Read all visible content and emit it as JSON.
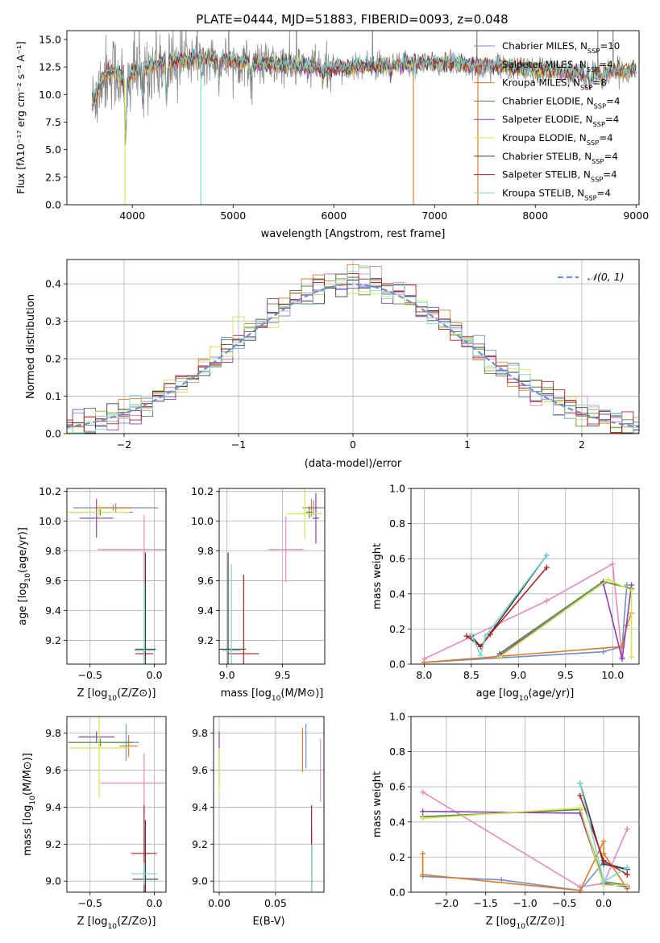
{
  "figure_title": "PLATE=0444, MJD=51883, FIBERID=0093, z=0.048",
  "series_colors": [
    "#6f8fcf",
    "#e78ac3",
    "#e07b23",
    "#4d8a3c",
    "#8e3fb4",
    "#d6e64a",
    "#3a3a3a",
    "#b51f1f",
    "#78d8d8"
  ],
  "chart_data": [
    {
      "id": "spectrum",
      "type": "line",
      "title": "PLATE=0444, MJD=51883, FIBERID=0093, z=0.048",
      "xlabel": "wavelength [Angstrom, rest frame]",
      "ylabel": "Flux [fλ10⁻¹⁷ erg cm⁻² s⁻¹ A⁻¹]",
      "xlim": [
        3350,
        9030
      ],
      "ylim": [
        0,
        15.8
      ],
      "xticks": [
        4000,
        5000,
        6000,
        7000,
        8000,
        9000
      ],
      "yticks": [
        0.0,
        2.5,
        5.0,
        7.5,
        10.0,
        12.5,
        15.0
      ],
      "ytick_labels": [
        "0.0",
        "2.5",
        "5.0",
        "7.5",
        "10.0",
        "12.5",
        "15.0"
      ],
      "legend": "top-right",
      "legend_entries": [
        {
          "label": "Chabrier MILES, N",
          "sub": "SSP",
          "suffix": "=10"
        },
        {
          "label": "Salpeter MILES, N",
          "sub": "SSP",
          "suffix": "=4"
        },
        {
          "label": "Kroupa MILES, N",
          "sub": "SSP",
          "suffix": "=8"
        },
        {
          "label": "Chabrier ELODIE, N",
          "sub": "SSP",
          "suffix": "=4"
        },
        {
          "label": "Salpeter ELODIE, N",
          "sub": "SSP",
          "suffix": "=4"
        },
        {
          "label": "Kroupa ELODIE, N",
          "sub": "SSP",
          "suffix": "=4"
        },
        {
          "label": "Chabrier STELIB, N",
          "sub": "SSP",
          "suffix": "=4"
        },
        {
          "label": "Salpeter STELIB, N",
          "sub": "SSP",
          "suffix": "=4"
        },
        {
          "label": "Kroupa STELIB, N",
          "sub": "SSP",
          "suffix": "=4"
        }
      ],
      "continuum": [
        [
          3600,
          9.0
        ],
        [
          3700,
          11.5
        ],
        [
          3800,
          12.3
        ],
        [
          3950,
          11.0
        ],
        [
          4000,
          12.0
        ],
        [
          4200,
          12.6
        ],
        [
          4500,
          13.2
        ],
        [
          4800,
          13.3
        ],
        [
          5000,
          13.0
        ],
        [
          5500,
          12.6
        ],
        [
          6000,
          12.4
        ],
        [
          6500,
          12.6
        ],
        [
          7000,
          12.9
        ],
        [
          7500,
          12.6
        ],
        [
          8000,
          12.3
        ],
        [
          8500,
          11.9
        ],
        [
          9000,
          12.2
        ]
      ],
      "absorption_features": [
        [
          3933,
          6.0
        ],
        [
          4101,
          3.0
        ],
        [
          4340,
          4.0
        ],
        [
          4861,
          2.0
        ],
        [
          5175,
          1.5
        ],
        [
          5893,
          1.2
        ],
        [
          6563,
          0.9
        ],
        [
          8498,
          1.0
        ],
        [
          8542,
          1.3
        ],
        [
          8662,
          1.0
        ]
      ],
      "drop_to_zero": [
        [
          3925,
          "#d6e64a"
        ],
        [
          4680,
          "#78d8d8"
        ],
        [
          6790,
          "#e07b23"
        ],
        [
          7430,
          "#e07b23"
        ]
      ]
    },
    {
      "id": "residuals",
      "type": "line",
      "xlabel": "(data-model)/error",
      "ylabel": "Normed distribution",
      "xlim": [
        -2.5,
        2.5
      ],
      "ylim": [
        0,
        0.465
      ],
      "xticks": [
        -2,
        -1,
        0,
        1,
        2
      ],
      "xtick_labels": [
        "−2",
        "−1",
        "0",
        "1",
        "2"
      ],
      "yticks": [
        0.0,
        0.1,
        0.2,
        0.3,
        0.4
      ],
      "ytick_labels": [
        "0.0",
        "0.1",
        "0.2",
        "0.3",
        "0.4"
      ],
      "grid": true,
      "legend": "top-right",
      "reference_curve": {
        "name": "𝒩(0, 1)",
        "mean": 0,
        "sigma": 1,
        "color": "#6f8fcf",
        "dashed": true
      },
      "bin_width": 0.1
    },
    {
      "id": "age_vs_Z",
      "type": "scatter",
      "xlabel_main": "Z [log",
      "xlabel_sub": "10",
      "xlabel_tail": "(Z/Z⊙)]",
      "ylabel_main": "age  [log",
      "ylabel_sub": "10",
      "ylabel_tail": "(age/yr)]",
      "xlim": [
        -0.68,
        0.09
      ],
      "ylim": [
        9.04,
        10.22
      ],
      "xticks": [
        -0.5,
        0.0
      ],
      "xtick_labels": [
        "−0.5",
        "0.0"
      ],
      "yticks": [
        9.2,
        9.4,
        9.6,
        9.8,
        10.0,
        10.2
      ],
      "ytick_labels": [
        "9.2",
        "9.4",
        "9.6",
        "9.8",
        "10.0",
        "10.2"
      ],
      "points": [
        {
          "x": -0.3,
          "y": 10.09,
          "dx": 0.33,
          "dy": 0.03,
          "color": "#6f8fcf"
        },
        {
          "x": -0.08,
          "y": 9.81,
          "dx": 0.36,
          "dy": 0.23,
          "color": "#e78ac3"
        },
        {
          "x": -0.32,
          "y": 10.09,
          "dx": 0.15,
          "dy": 0.02,
          "color": "#e07b23"
        },
        {
          "x": -0.42,
          "y": 10.06,
          "dx": 0.25,
          "dy": 0.02,
          "color": "#4d8a3c"
        },
        {
          "x": -0.45,
          "y": 10.02,
          "dx": 0.13,
          "dy": 0.13,
          "color": "#8e3fb4"
        },
        {
          "x": -0.43,
          "y": 10.06,
          "dx": 0.24,
          "dy": 0.05,
          "color": "#d6e64a"
        },
        {
          "x": -0.07,
          "y": 9.14,
          "dx": 0.08,
          "dy": 0.65,
          "color": "#3a3a3a"
        },
        {
          "x": -0.08,
          "y": 9.11,
          "dx": 0.07,
          "dy": 0.03,
          "color": "#b51f1f"
        },
        {
          "x": -0.08,
          "y": 9.13,
          "dx": 0.08,
          "dy": 0.45,
          "color": "#78d8d8"
        }
      ]
    },
    {
      "id": "age_vs_mass",
      "type": "scatter",
      "xlabel_main": "mass [log",
      "xlabel_sub": "10",
      "xlabel_tail": "(M/M⊙)]",
      "xlim": [
        8.93,
        9.88
      ],
      "ylim": [
        9.04,
        10.22
      ],
      "xticks": [
        9.0,
        9.5
      ],
      "xtick_labels": [
        "9.0",
        "9.5"
      ],
      "yticks": [
        9.2,
        9.4,
        9.6,
        9.8,
        10.0,
        10.2
      ],
      "ytick_labels": [
        "9.2",
        "9.4",
        "9.6",
        "9.8",
        "10.0",
        "10.2"
      ],
      "points": [
        {
          "x": 9.78,
          "y": 10.09,
          "dx": 0.1,
          "dy": 0.05,
          "color": "#6f8fcf"
        },
        {
          "x": 9.53,
          "y": 9.81,
          "dx": 0.16,
          "dy": 0.22,
          "color": "#e78ac3"
        },
        {
          "x": 9.76,
          "y": 10.09,
          "dx": 0.06,
          "dy": 0.06,
          "color": "#e07b23"
        },
        {
          "x": 9.74,
          "y": 10.06,
          "dx": 0.03,
          "dy": 0.04,
          "color": "#4d8a3c"
        },
        {
          "x": 9.8,
          "y": 10.02,
          "dx": 0.03,
          "dy": 0.17,
          "color": "#8e3fb4"
        },
        {
          "x": 9.7,
          "y": 10.05,
          "dx": 0.16,
          "dy": 0.17,
          "color": "#d6e64a"
        },
        {
          "x": 9.01,
          "y": 9.14,
          "dx": 0.16,
          "dy": 0.65,
          "color": "#3a3a3a"
        },
        {
          "x": 9.15,
          "y": 9.11,
          "dx": 0.14,
          "dy": 0.53,
          "color": "#b51f1f"
        },
        {
          "x": 9.04,
          "y": 9.13,
          "dx": 0.08,
          "dy": 0.58,
          "color": "#78d8d8"
        }
      ]
    },
    {
      "id": "weight_vs_age",
      "type": "line",
      "xlabel_main": "age  [log",
      "xlabel_sub": "10",
      "xlabel_tail": "(age/yr)]",
      "ylabel": "mass weight",
      "xlim": [
        7.86,
        10.28
      ],
      "ylim": [
        0,
        1.0
      ],
      "xticks": [
        8.0,
        8.5,
        9.0,
        9.5,
        10.0
      ],
      "xtick_labels": [
        "8.0",
        "8.5",
        "9.0",
        "9.5",
        "10.0"
      ],
      "yticks": [
        0.0,
        0.2,
        0.4,
        0.6,
        0.8,
        1.0
      ],
      "ytick_labels": [
        "0.0",
        "0.2",
        "0.4",
        "0.6",
        "0.8",
        "1.0"
      ],
      "grid": true,
      "series": [
        {
          "color": "#6f8fcf",
          "x": [
            8.0,
            9.9,
            10.1,
            10.15
          ],
          "y": [
            0.01,
            0.07,
            0.1,
            0.45
          ]
        },
        {
          "color": "#e78ac3",
          "x": [
            8.0,
            9.3,
            10.0,
            10.1
          ],
          "y": [
            0.03,
            0.36,
            0.57,
            0.04
          ]
        },
        {
          "color": "#e07b23",
          "x": [
            8.0,
            10.1,
            10.15,
            10.2
          ],
          "y": [
            0.01,
            0.1,
            0.22,
            0.29
          ]
        },
        {
          "color": "#4d8a3c",
          "x": [
            8.8,
            9.9,
            10.2
          ],
          "y": [
            0.06,
            0.47,
            0.43
          ]
        },
        {
          "color": "#8e3fb4",
          "x": [
            8.8,
            9.9,
            10.1,
            10.2
          ],
          "y": [
            0.05,
            0.46,
            0.03,
            0.45
          ]
        },
        {
          "color": "#d6e64a",
          "x": [
            8.8,
            9.95,
            10.2,
            10.2
          ],
          "y": [
            0.04,
            0.48,
            0.42,
            0.04
          ]
        },
        {
          "color": "#3a3a3a",
          "x": [
            8.5,
            8.6,
            9.3
          ],
          "y": [
            0.16,
            0.1,
            0.62
          ]
        },
        {
          "color": "#b51f1f",
          "x": [
            8.45,
            8.6,
            8.7,
            9.3
          ],
          "y": [
            0.16,
            0.1,
            0.17,
            0.55
          ]
        },
        {
          "color": "#78d8d8",
          "x": [
            8.5,
            8.6,
            8.65,
            9.3
          ],
          "y": [
            0.17,
            0.05,
            0.16,
            0.62
          ]
        }
      ]
    },
    {
      "id": "mass_vs_Z",
      "type": "scatter",
      "xlabel_main": "Z [log",
      "xlabel_sub": "10",
      "xlabel_tail": "(Z/Z⊙)]",
      "ylabel_main": "mass [log",
      "ylabel_sub": "10",
      "ylabel_tail": "(M/M⊙)]",
      "xlim": [
        -0.68,
        0.09
      ],
      "ylim": [
        8.94,
        9.89
      ],
      "xticks": [
        -0.5,
        0.0
      ],
      "xtick_labels": [
        "−0.5",
        "0.0"
      ],
      "yticks": [
        9.0,
        9.2,
        9.4,
        9.6,
        9.8
      ],
      "ytick_labels": [
        "9.0",
        "9.2",
        "9.4",
        "9.6",
        "9.8"
      ],
      "points": [
        {
          "x": -0.22,
          "y": 9.75,
          "dx": 0.1,
          "dy": 0.1,
          "color": "#6f8fcf"
        },
        {
          "x": -0.08,
          "y": 9.53,
          "dx": 0.34,
          "dy": 0.16,
          "color": "#e78ac3"
        },
        {
          "x": -0.2,
          "y": 9.73,
          "dx": 0.07,
          "dy": 0.06,
          "color": "#e07b23"
        },
        {
          "x": -0.42,
          "y": 9.75,
          "dx": 0.25,
          "dy": 0.02,
          "color": "#4d8a3c"
        },
        {
          "x": -0.45,
          "y": 9.78,
          "dx": 0.14,
          "dy": 0.03,
          "color": "#8e3fb4"
        },
        {
          "x": -0.43,
          "y": 9.72,
          "dx": 0.23,
          "dy": 0.27,
          "color": "#d6e64a"
        },
        {
          "x": -0.07,
          "y": 9.01,
          "dx": 0.1,
          "dy": 0.32,
          "color": "#3a3a3a"
        },
        {
          "x": -0.08,
          "y": 9.15,
          "dx": 0.1,
          "dy": 0.26,
          "color": "#b51f1f"
        },
        {
          "x": -0.08,
          "y": 9.04,
          "dx": 0.1,
          "dy": 0.06,
          "color": "#78d8d8"
        }
      ]
    },
    {
      "id": "mass_vs_ebv",
      "type": "scatter",
      "xlabel": "E(B-V)",
      "xlim": [
        -0.005,
        0.093
      ],
      "ylim": [
        8.94,
        9.89
      ],
      "xticks": [
        0.0,
        0.05
      ],
      "xtick_labels": [
        "0.00",
        "0.05"
      ],
      "yticks": [
        9.0,
        9.2,
        9.4,
        9.6,
        9.8
      ],
      "ytick_labels": [
        "9.0",
        "9.2",
        "9.4",
        "9.6",
        "9.8"
      ],
      "points": [
        {
          "x": 0.077,
          "y": 9.73,
          "dx": 0.0,
          "dy": 0.12,
          "color": "#6f8fcf"
        },
        {
          "x": 0.09,
          "y": 9.6,
          "dx": 0.0,
          "dy": 0.17,
          "color": "#e78ac3"
        },
        {
          "x": 0.074,
          "y": 9.71,
          "dx": 0.0,
          "dy": 0.12,
          "color": "#e07b23"
        },
        {
          "x": 0.0,
          "y": 9.62,
          "dx": 0.0,
          "dy": 0.1,
          "color": "#4d8a3c"
        },
        {
          "x": 0.0,
          "y": 9.74,
          "dx": 0.0,
          "dy": 0.07,
          "color": "#8e3fb4"
        },
        {
          "x": 0.0,
          "y": 9.59,
          "dx": 0.0,
          "dy": 0.13,
          "color": "#d6e64a"
        },
        {
          "x": 0.082,
          "y": 9.1,
          "dx": 0.0,
          "dy": 0.18,
          "color": "#3a3a3a"
        },
        {
          "x": 0.082,
          "y": 9.2,
          "dx": 0.0,
          "dy": 0.21,
          "color": "#b51f1f"
        },
        {
          "x": 0.082,
          "y": 9.05,
          "dx": 0.0,
          "dy": 0.15,
          "color": "#78d8d8"
        }
      ]
    },
    {
      "id": "weight_vs_Z",
      "type": "line",
      "xlabel_main": "Z [log",
      "xlabel_sub": "10",
      "xlabel_tail": "(Z/Z⊙)]",
      "ylabel": "mass weight",
      "xlim": [
        -2.45,
        0.45
      ],
      "ylim": [
        0,
        1.0
      ],
      "xticks": [
        -2.0,
        -1.5,
        -1.0,
        -0.5,
        0.0
      ],
      "xtick_labels": [
        "−2.0",
        "−1.5",
        "−1.0",
        "−0.5",
        "0.0"
      ],
      "yticks": [
        0.0,
        0.2,
        0.4,
        0.6,
        0.8,
        1.0
      ],
      "ytick_labels": [
        "0.0",
        "0.2",
        "0.4",
        "0.6",
        "0.8",
        "1.0"
      ],
      "grid": true,
      "series": [
        {
          "color": "#6f8fcf",
          "x": [
            -2.3,
            -1.3,
            -0.3,
            0.0,
            0.3
          ],
          "y": [
            0.09,
            0.07,
            0.01,
            0.17,
            0.13
          ]
        },
        {
          "color": "#e78ac3",
          "x": [
            -2.3,
            -0.3,
            0.0,
            0.3
          ],
          "y": [
            0.57,
            0.03,
            0.05,
            0.36
          ]
        },
        {
          "color": "#e07b23",
          "x": [
            -2.3,
            -2.3,
            -0.3,
            0.0,
            0.0,
            0.3
          ],
          "y": [
            0.22,
            0.1,
            0.01,
            0.29,
            0.22,
            0.02
          ]
        },
        {
          "color": "#4d8a3c",
          "x": [
            -2.3,
            -0.3,
            0.0,
            0.3
          ],
          "y": [
            0.43,
            0.47,
            0.06,
            0.04
          ]
        },
        {
          "color": "#8e3fb4",
          "x": [
            -2.3,
            -0.3,
            0.0,
            0.3
          ],
          "y": [
            0.46,
            0.45,
            0.05,
            0.03
          ]
        },
        {
          "color": "#d6e64a",
          "x": [
            -2.3,
            -0.3,
            0.0,
            0.3
          ],
          "y": [
            0.42,
            0.48,
            0.04,
            0.04
          ]
        },
        {
          "color": "#3a3a3a",
          "x": [
            -0.3,
            0.0,
            0.3
          ],
          "y": [
            0.62,
            0.16,
            0.13
          ]
        },
        {
          "color": "#b51f1f",
          "x": [
            -0.3,
            0.0,
            0.3
          ],
          "y": [
            0.55,
            0.18,
            0.1
          ]
        },
        {
          "color": "#78d8d8",
          "x": [
            -0.3,
            0.0,
            0.3
          ],
          "y": [
            0.62,
            0.06,
            0.14
          ]
        }
      ]
    }
  ]
}
